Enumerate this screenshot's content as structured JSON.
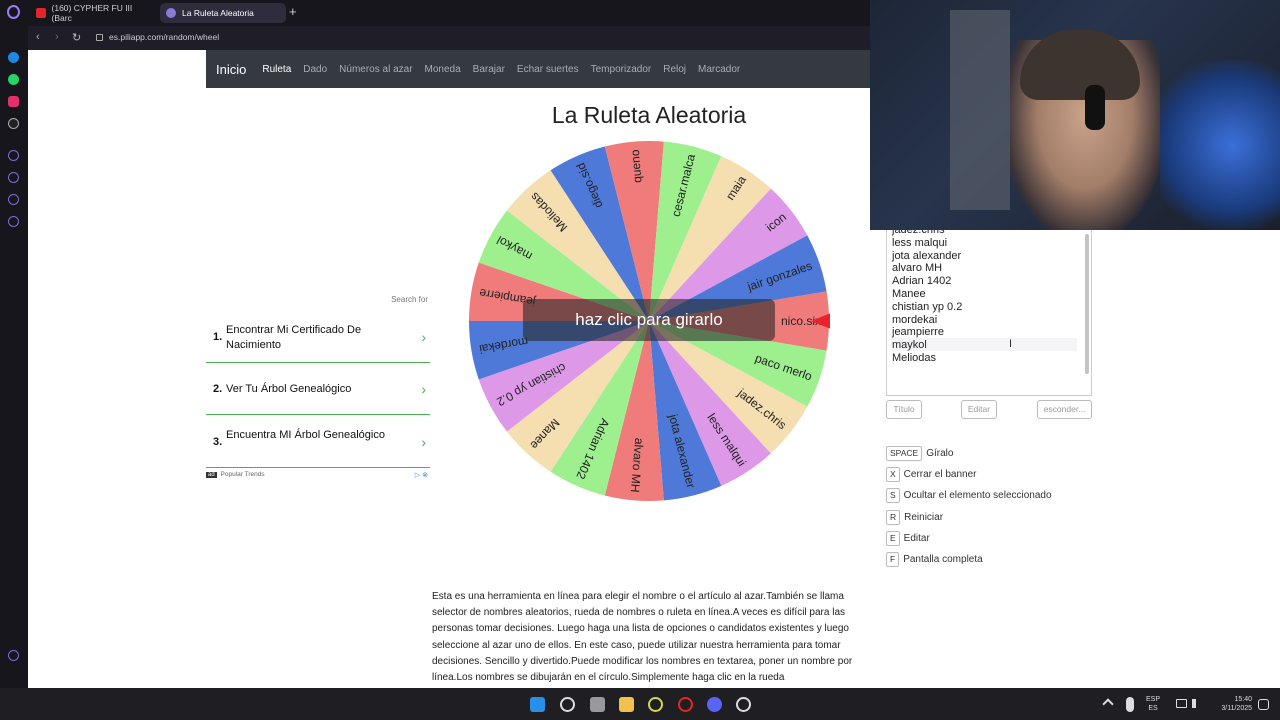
{
  "browser": {
    "tabs": [
      {
        "label": "(160) CYPHER FU III (Barc"
      },
      {
        "label": "La Ruleta Aleatoria"
      }
    ],
    "url": "es.piliapp.com/random/wheel"
  },
  "nav": {
    "brand": "Inicio",
    "links": [
      "Ruleta",
      "Dado",
      "Números al azar",
      "Moneda",
      "Barajar",
      "Echar suertes",
      "Temporizador",
      "Reloj",
      "Marcador"
    ]
  },
  "page_title": "La Ruleta Aleatoria",
  "wheel": {
    "spin_label": "haz clic para girarlo",
    "segments": [
      {
        "label": "nico.six",
        "color": "#f07b7b"
      },
      {
        "label": "paco merlo",
        "color": "#9ef08e"
      },
      {
        "label": "jadez.chris",
        "color": "#f5deb0"
      },
      {
        "label": "less malqui",
        "color": "#dd99e8"
      },
      {
        "label": "jota alexander",
        "color": "#4f79d8"
      },
      {
        "label": "alvaro MH",
        "color": "#f07b7b"
      },
      {
        "label": "Adrian 1402",
        "color": "#9ef08e"
      },
      {
        "label": "Manee",
        "color": "#f5deb0"
      },
      {
        "label": "chistian yp 0.2",
        "color": "#dd99e8"
      },
      {
        "label": "mordekai",
        "color": "#4f79d8"
      },
      {
        "label": "jeampierre",
        "color": "#f07b7b"
      },
      {
        "label": "maykol",
        "color": "#9ef08e"
      },
      {
        "label": "Meliodas",
        "color": "#f5deb0"
      },
      {
        "label": "diego.sid",
        "color": "#4f79d8"
      },
      {
        "label": "queno",
        "color": "#f07b7b"
      },
      {
        "label": "cesar.malca",
        "color": "#9ef08e"
      },
      {
        "label": "maia",
        "color": "#f5deb0"
      },
      {
        "label": "icon",
        "color": "#dd99e8"
      },
      {
        "label": "jair gonzales",
        "color": "#4f79d8"
      }
    ],
    "pointer_color": "#e8242a"
  },
  "ad": {
    "search_for": "Search for",
    "items": [
      {
        "num": "1.",
        "text": "Encontrar Mi Certificado De Nacimiento"
      },
      {
        "num": "2.",
        "text": "Ver Tu Árbol Genealógico"
      },
      {
        "num": "3.",
        "text": "Encuentra MI Árbol Genealógico"
      }
    ],
    "footer": "Popular Trends",
    "badge": "ad"
  },
  "description": "Esta es una herramienta en línea para elegir el nombre o el artículo al azar.También se llama selector de nombres aleatorios, rueda de nombres o ruleta en línea.A veces es difícil para las personas tomar decisiones. Luego haga una lista de opciones o candidatos existentes y luego seleccione al azar uno de ellos. En este caso, puede utilizar nuestra herramienta para tomar decisiones. Sencillo y divertido.Puede modificar los nombres en textarea, poner un nombre por línea.Los nombres se dibujarán en el círculo.Simplemente haga clic en la rueda",
  "names_list": [
    "jadez.chris",
    "less malqui",
    "jota alexander",
    "alvaro MH",
    "Adrian 1402",
    "Manee",
    "chistian yp 0.2",
    "mordekai",
    "jeampierre",
    "maykol",
    "Meliodas"
  ],
  "panel_buttons": {
    "title": "Título",
    "edit": "Editar",
    "hide": "esconder..."
  },
  "shortcuts": [
    {
      "key": "SPACE",
      "label": "Gíralo"
    },
    {
      "key": "X",
      "label": "Cerrar el banner"
    },
    {
      "key": "S",
      "label": "Ocultar el elemento seleccionado"
    },
    {
      "key": "R",
      "label": "Reiniciar"
    },
    {
      "key": "E",
      "label": "Editar"
    },
    {
      "key": "F",
      "label": "Pantalla completa"
    }
  ],
  "taskbar": {
    "lang_top": "ESP",
    "lang_bottom": "ES",
    "time": "15:40",
    "date": "3/11/2025"
  }
}
